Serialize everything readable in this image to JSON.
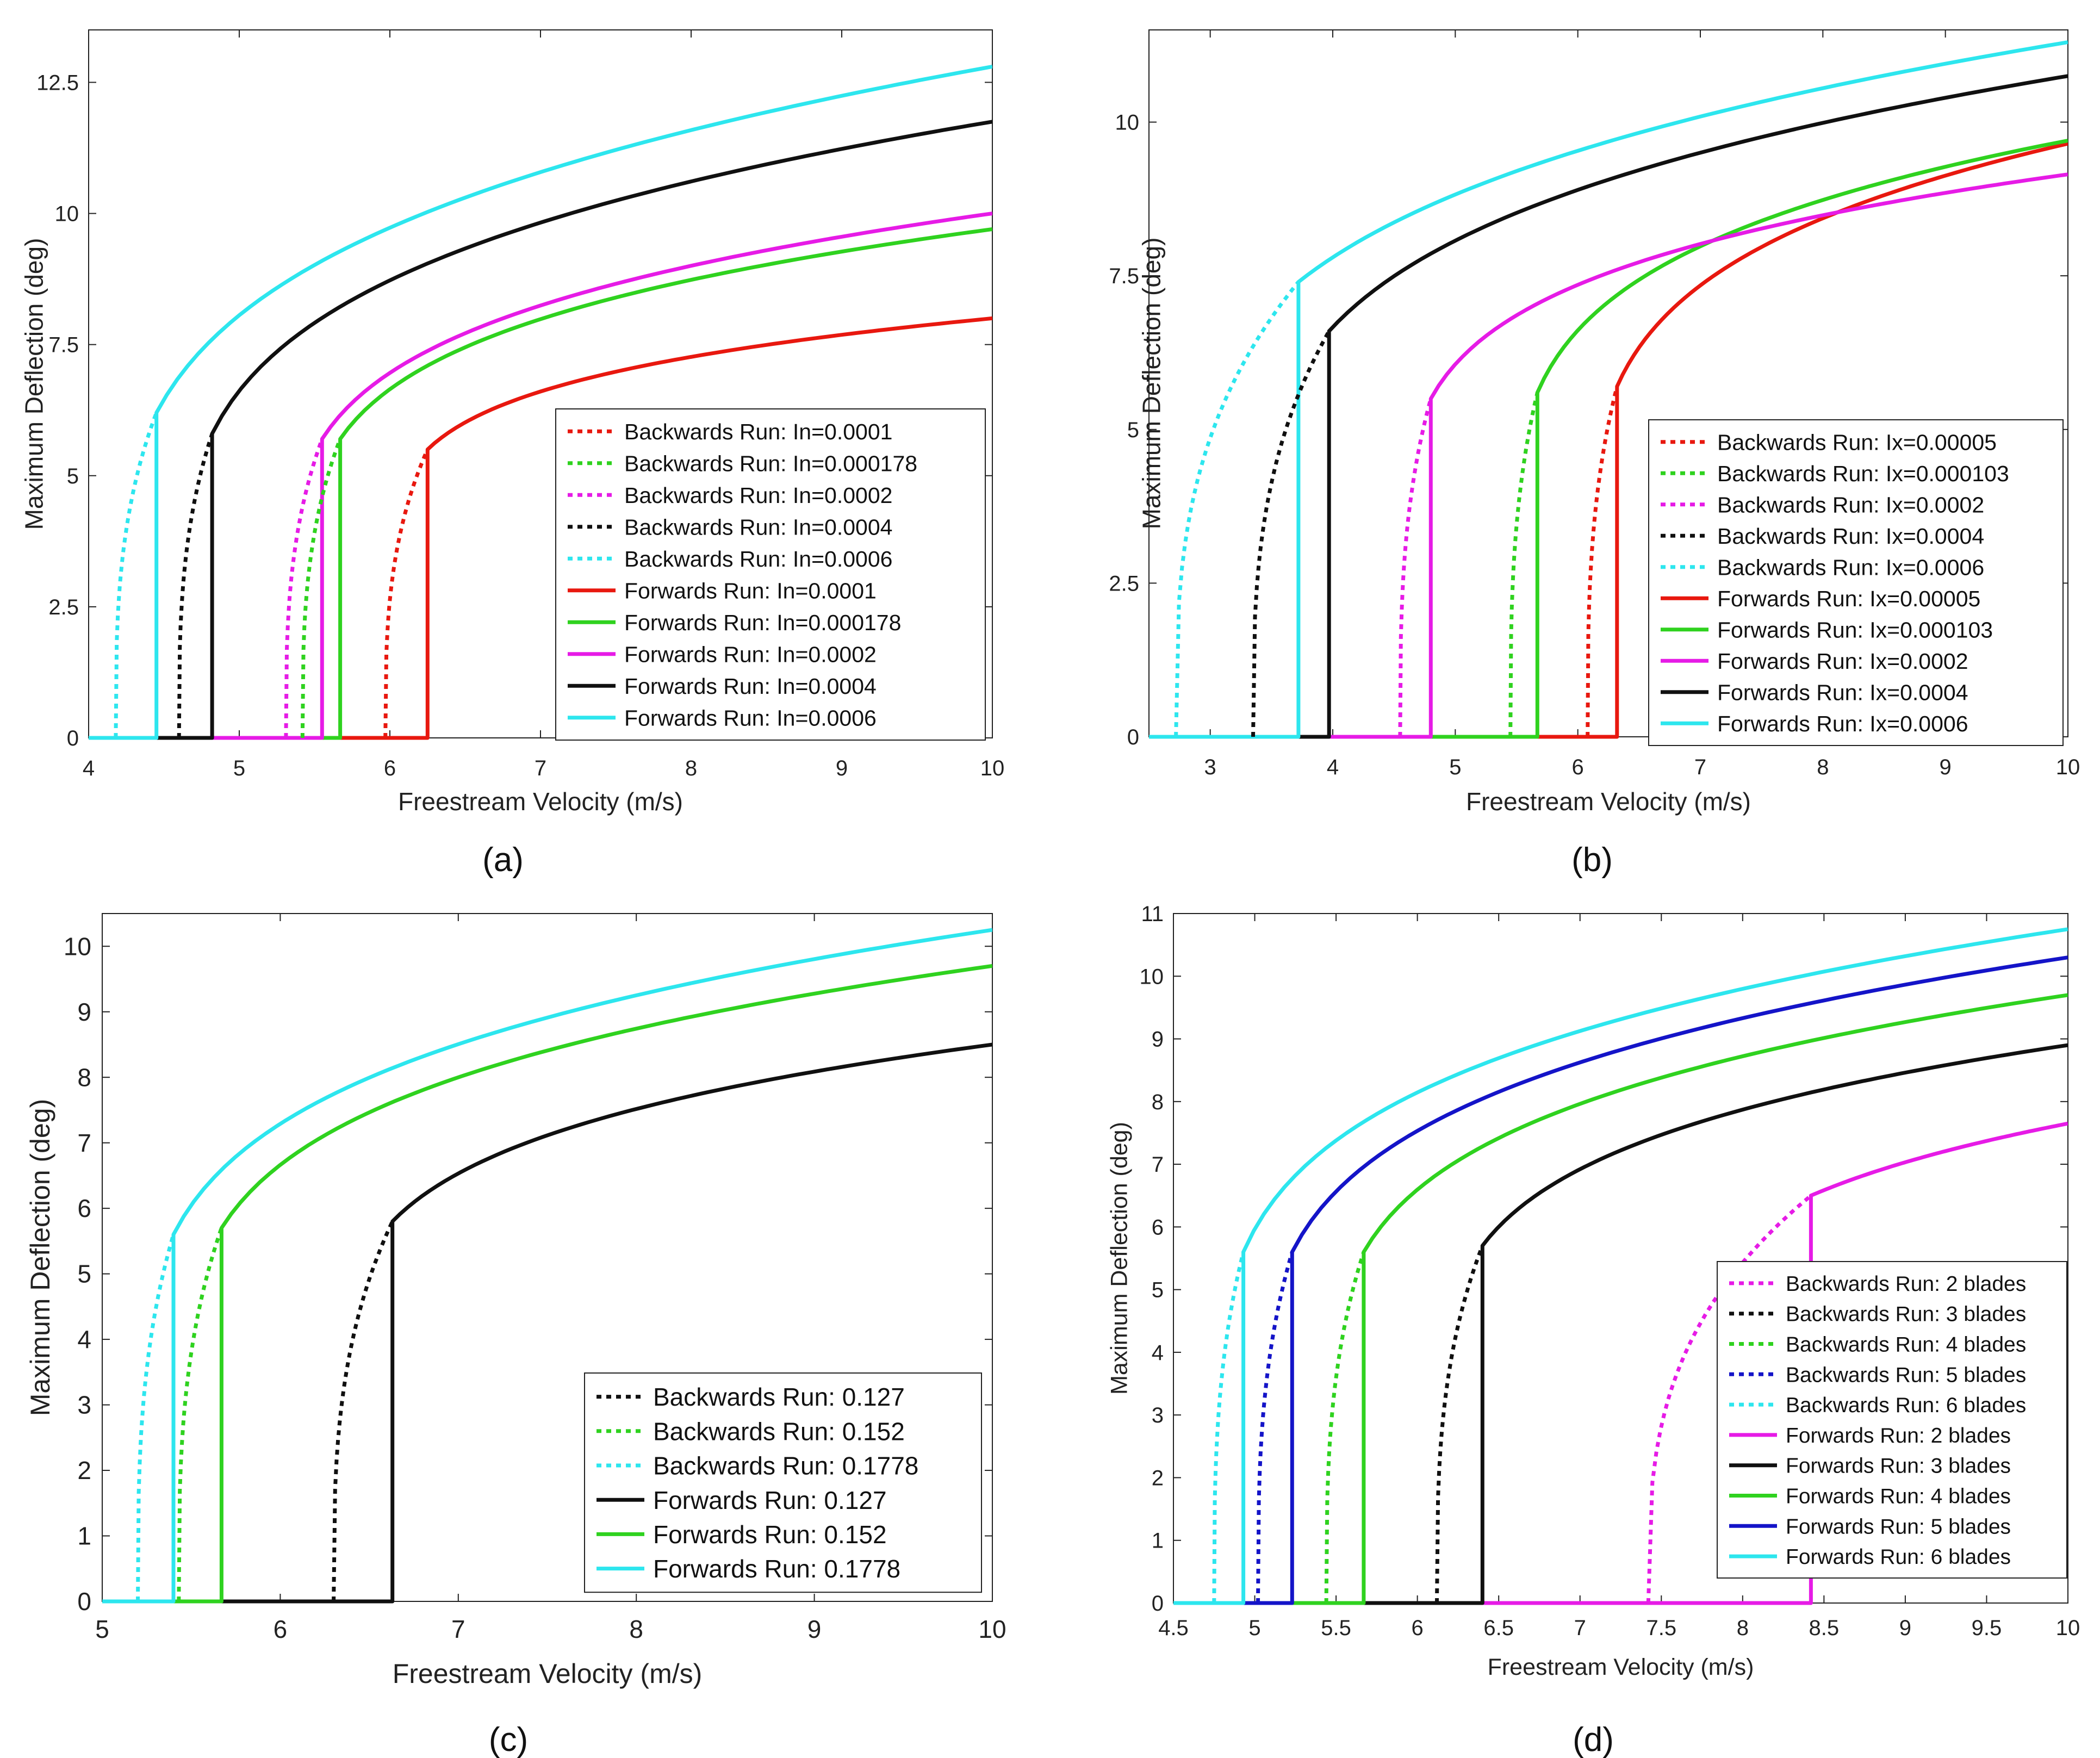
{
  "colors": {
    "red": "#e8180f",
    "green": "#2fd21f",
    "magenta": "#e61be6",
    "black": "#101010",
    "cyan": "#2de6ee",
    "blue": "#1414c8"
  },
  "chart_data": [
    {
      "type": "line",
      "panel_label": "(a)",
      "xlabel": "Freestream Velocity (m/s)",
      "ylabel": "Maximum Deflection (deg)",
      "xlim": [
        4,
        10
      ],
      "ylim": [
        0,
        13.5
      ],
      "xticks": [
        4,
        5,
        6,
        7,
        8,
        9,
        10
      ],
      "yticks": [
        0,
        2.5,
        5,
        7.5,
        10,
        12.5
      ],
      "xtick_labels": [
        "4",
        "5",
        "6",
        "7",
        "8",
        "9",
        "10"
      ],
      "ytick_labels": [
        "0",
        "2.5",
        "5",
        "7.5",
        "10",
        "12.5"
      ],
      "legend_position": "lower-right",
      "series": [
        {
          "name": "Backwards Run: In=0.0001",
          "kind": "backward",
          "color": "red",
          "vb": 5.97,
          "vf": 6.25,
          "yj": 5.5,
          "y10": 8.0
        },
        {
          "name": "Backwards Run: In=0.000178",
          "kind": "backward",
          "color": "green",
          "vb": 5.42,
          "vf": 5.67,
          "yj": 5.7,
          "y10": 9.7
        },
        {
          "name": "Backwards Run: In=0.0002",
          "kind": "backward",
          "color": "magenta",
          "vb": 5.31,
          "vf": 5.55,
          "yj": 5.7,
          "y10": 10.0
        },
        {
          "name": "Backwards Run: In=0.0004",
          "kind": "backward",
          "color": "black",
          "vb": 4.6,
          "vf": 4.82,
          "yj": 5.8,
          "y10": 11.75
        },
        {
          "name": "Backwards Run: In=0.0006",
          "kind": "backward",
          "color": "cyan",
          "vb": 4.18,
          "vf": 4.45,
          "yj": 6.2,
          "y10": 12.8
        },
        {
          "name": "Forwards Run: In=0.0001",
          "kind": "forward",
          "color": "red",
          "vb": 5.97,
          "vf": 6.25,
          "yj": 5.5,
          "y10": 8.0
        },
        {
          "name": "Forwards Run: In=0.000178",
          "kind": "forward",
          "color": "green",
          "vb": 5.42,
          "vf": 5.67,
          "yj": 5.7,
          "y10": 9.7
        },
        {
          "name": "Forwards Run: In=0.0002",
          "kind": "forward",
          "color": "magenta",
          "vb": 5.31,
          "vf": 5.55,
          "yj": 5.7,
          "y10": 10.0
        },
        {
          "name": "Forwards Run: In=0.0004",
          "kind": "forward",
          "color": "black",
          "vb": 4.6,
          "vf": 4.82,
          "yj": 5.8,
          "y10": 11.75
        },
        {
          "name": "Forwards Run: In=0.0006",
          "kind": "forward",
          "color": "cyan",
          "vb": 4.18,
          "vf": 4.45,
          "yj": 6.2,
          "y10": 12.8
        }
      ]
    },
    {
      "type": "line",
      "panel_label": "(b)",
      "xlabel": "Freestream Velocity (m/s)",
      "ylabel": "Maximum Deflection (deg)",
      "xlim": [
        2.5,
        10
      ],
      "ylim": [
        0,
        11.5
      ],
      "xticks": [
        3,
        4,
        5,
        6,
        7,
        8,
        9,
        10
      ],
      "yticks": [
        0,
        2.5,
        5,
        7.5,
        10
      ],
      "xtick_labels": [
        "3",
        "4",
        "5",
        "6",
        "7",
        "8",
        "9",
        "10"
      ],
      "ytick_labels": [
        "0",
        "2.5",
        "5",
        "7.5",
        "10"
      ],
      "legend_position": "lower-right",
      "series": [
        {
          "name": "Backwards Run: Ix=0.00005",
          "kind": "backward",
          "color": "red",
          "vb": 6.08,
          "vf": 6.32,
          "yj": 5.7,
          "y10": 9.65
        },
        {
          "name": "Backwards Run: Ix=0.000103",
          "kind": "backward",
          "color": "green",
          "vb": 5.45,
          "vf": 5.67,
          "yj": 5.6,
          "y10": 9.7
        },
        {
          "name": "Backwards Run: Ix=0.0002",
          "kind": "backward",
          "color": "magenta",
          "vb": 4.55,
          "vf": 4.8,
          "yj": 5.5,
          "y10": 9.15
        },
        {
          "name": "Backwards Run: Ix=0.0004",
          "kind": "backward",
          "color": "black",
          "vb": 3.35,
          "vf": 3.97,
          "yj": 6.6,
          "y10": 10.75
        },
        {
          "name": "Backwards Run: Ix=0.0006",
          "kind": "backward",
          "color": "cyan",
          "vb": 2.72,
          "vf": 3.72,
          "yj": 7.4,
          "y10": 11.3
        },
        {
          "name": "Forwards Run: Ix=0.00005",
          "kind": "forward",
          "color": "red",
          "vb": 6.08,
          "vf": 6.32,
          "yj": 5.7,
          "y10": 9.65
        },
        {
          "name": "Forwards Run: Ix=0.000103",
          "kind": "forward",
          "color": "green",
          "vb": 5.45,
          "vf": 5.67,
          "yj": 5.6,
          "y10": 9.7
        },
        {
          "name": "Forwards Run: Ix=0.0002",
          "kind": "forward",
          "color": "magenta",
          "vb": 4.55,
          "vf": 4.8,
          "yj": 5.5,
          "y10": 9.15
        },
        {
          "name": "Forwards Run: Ix=0.0004",
          "kind": "forward",
          "color": "black",
          "vb": 3.35,
          "vf": 3.97,
          "yj": 6.6,
          "y10": 10.75
        },
        {
          "name": "Forwards Run: Ix=0.0006",
          "kind": "forward",
          "color": "cyan",
          "vb": 2.72,
          "vf": 3.72,
          "yj": 7.4,
          "y10": 11.3
        }
      ]
    },
    {
      "type": "line",
      "panel_label": "(c)",
      "xlabel": "Freestream Velocity (m/s)",
      "ylabel": "Maximum Deflection (deg)",
      "xlim": [
        5,
        10
      ],
      "ylim": [
        0,
        10.5
      ],
      "xticks": [
        5,
        6,
        7,
        8,
        9,
        10
      ],
      "yticks": [
        0,
        1,
        2,
        3,
        4,
        5,
        6,
        7,
        8,
        9,
        10
      ],
      "xtick_labels": [
        "5",
        "6",
        "7",
        "8",
        "9",
        "10"
      ],
      "ytick_labels": [
        "0",
        "1",
        "2",
        "3",
        "4",
        "5",
        "6",
        "7",
        "8",
        "9",
        "10"
      ],
      "legend_position": "lower-right",
      "series": [
        {
          "name": "Backwards Run: 0.127",
          "kind": "backward",
          "color": "black",
          "vb": 6.3,
          "vf": 6.63,
          "yj": 5.8,
          "y10": 8.5
        },
        {
          "name": "Backwards Run: 0.152",
          "kind": "backward",
          "color": "green",
          "vb": 5.43,
          "vf": 5.67,
          "yj": 5.7,
          "y10": 9.7
        },
        {
          "name": "Backwards Run: 0.1778",
          "kind": "backward",
          "color": "cyan",
          "vb": 5.2,
          "vf": 5.4,
          "yj": 5.6,
          "y10": 10.25
        },
        {
          "name": "Forwards Run: 0.127",
          "kind": "forward",
          "color": "black",
          "vb": 6.3,
          "vf": 6.63,
          "yj": 5.8,
          "y10": 8.5
        },
        {
          "name": "Forwards Run: 0.152",
          "kind": "forward",
          "color": "green",
          "vb": 5.43,
          "vf": 5.67,
          "yj": 5.7,
          "y10": 9.7
        },
        {
          "name": "Forwards Run: 0.1778",
          "kind": "forward",
          "color": "cyan",
          "vb": 5.2,
          "vf": 5.4,
          "yj": 5.6,
          "y10": 10.25
        }
      ]
    },
    {
      "type": "line",
      "panel_label": "(d)",
      "xlabel": "Freestream Velocity (m/s)",
      "ylabel": "Maximum Deflection (deg)",
      "xlim": [
        4.5,
        10
      ],
      "ylim": [
        0,
        11
      ],
      "xticks": [
        4.5,
        5,
        5.5,
        6,
        6.5,
        7,
        7.5,
        8,
        8.5,
        9,
        9.5,
        10
      ],
      "yticks": [
        0,
        1,
        2,
        3,
        4,
        5,
        6,
        7,
        8,
        9,
        10,
        11
      ],
      "xtick_labels": [
        "4.5",
        "5",
        "5.5",
        "6",
        "6.5",
        "7",
        "7.5",
        "8",
        "8.5",
        "9",
        "9.5",
        "10"
      ],
      "ytick_labels": [
        "0",
        "1",
        "2",
        "3",
        "4",
        "5",
        "6",
        "7",
        "8",
        "9",
        "10",
        "11"
      ],
      "legend_position": "lower-right",
      "series": [
        {
          "name": "Backwards Run: 2 blades",
          "kind": "backward",
          "color": "magenta",
          "vb": 7.42,
          "vf": 8.42,
          "yj": 6.5,
          "y10": 7.65
        },
        {
          "name": "Backwards Run: 3 blades",
          "kind": "backward",
          "color": "black",
          "vb": 6.12,
          "vf": 6.4,
          "yj": 5.7,
          "y10": 8.9
        },
        {
          "name": "Backwards Run: 4 blades",
          "kind": "backward",
          "color": "green",
          "vb": 5.44,
          "vf": 5.67,
          "yj": 5.6,
          "y10": 9.7
        },
        {
          "name": "Backwards Run: 5 blades",
          "kind": "backward",
          "color": "blue",
          "vb": 5.02,
          "vf": 5.23,
          "yj": 5.6,
          "y10": 10.3
        },
        {
          "name": "Backwards Run: 6 blades",
          "kind": "backward",
          "color": "cyan",
          "vb": 4.75,
          "vf": 4.93,
          "yj": 5.6,
          "y10": 10.75
        },
        {
          "name": "Forwards Run: 2 blades",
          "kind": "forward",
          "color": "magenta",
          "vb": 7.42,
          "vf": 8.42,
          "yj": 6.5,
          "y10": 7.65
        },
        {
          "name": "Forwards Run: 3 blades",
          "kind": "forward",
          "color": "black",
          "vb": 6.12,
          "vf": 6.4,
          "yj": 5.7,
          "y10": 8.9
        },
        {
          "name": "Forwards Run: 4 blades",
          "kind": "forward",
          "color": "green",
          "vb": 5.44,
          "vf": 5.67,
          "yj": 5.6,
          "y10": 9.7
        },
        {
          "name": "Forwards Run: 5 blades",
          "kind": "forward",
          "color": "blue",
          "vb": 5.02,
          "vf": 5.23,
          "yj": 5.6,
          "y10": 10.3
        },
        {
          "name": "Forwards Run: 6 blades",
          "kind": "forward",
          "color": "cyan",
          "vb": 4.75,
          "vf": 4.93,
          "yj": 5.6,
          "y10": 10.75
        }
      ]
    }
  ]
}
